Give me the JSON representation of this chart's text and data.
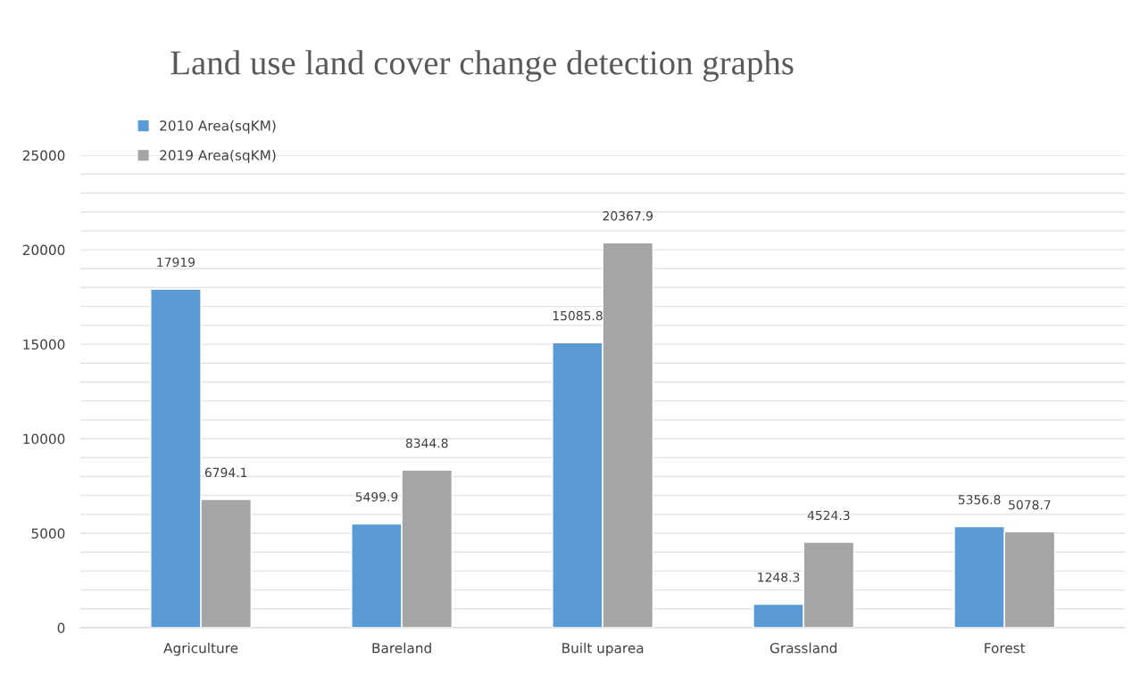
{
  "chart_data": {
    "type": "bar",
    "title": "Land use land cover change detection graphs",
    "categories": [
      "Agriculture",
      "Bareland",
      "Built uparea",
      "Grassland",
      "Forest"
    ],
    "series": [
      {
        "name": "2010 Area(sqKM)",
        "color": "#5b9bd5",
        "values": [
          17919,
          5499.9,
          15085.8,
          1248.3,
          5356.8
        ]
      },
      {
        "name": "2019 Area(sqKM)",
        "color": "#a5a5a5",
        "values": [
          6794.1,
          8344.8,
          20367.9,
          4524.3,
          5078.7
        ]
      }
    ],
    "ylim": [
      0,
      25000
    ],
    "yticks": [
      0,
      {
        "value": 1000,
        "label": null
      },
      {
        "value": 2000,
        "label": null
      },
      {
        "value": 3000,
        "label": null
      },
      {
        "value": 4000,
        "label": null
      },
      5000,
      {
        "value": 6000,
        "label": null
      },
      {
        "value": 7000,
        "label": null
      },
      {
        "value": 8000,
        "label": null
      },
      {
        "value": 9000,
        "label": null
      },
      10000,
      {
        "value": 11000,
        "label": null
      },
      {
        "value": 12000,
        "label": null
      },
      {
        "value": 13000,
        "label": null
      },
      {
        "value": 14000,
        "label": null
      },
      15000,
      {
        "value": 16000,
        "label": null
      },
      {
        "value": 17000,
        "label": null
      },
      {
        "value": 18000,
        "label": null
      },
      {
        "value": 19000,
        "label": null
      },
      20000,
      {
        "value": 21000,
        "label": null
      },
      {
        "value": 22000,
        "label": null
      },
      {
        "value": 23000,
        "label": null
      },
      {
        "value": 24000,
        "label": null
      },
      25000
    ],
    "grid": "y",
    "legend": "top left",
    "data_labels": true
  }
}
